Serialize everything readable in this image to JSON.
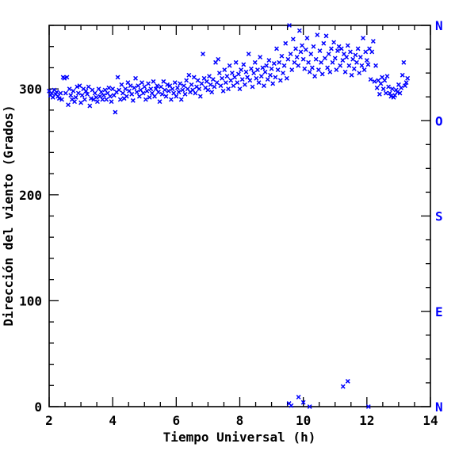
{
  "chart_data": {
    "type": "scatter",
    "xlabel": "Tiempo Universal (h)",
    "ylabel": "Dirección del viento (Grados)",
    "xlim": [
      2,
      14
    ],
    "ylim": [
      0,
      360
    ],
    "x_ticks": [
      "2",
      "4",
      "6",
      "8",
      "10",
      "12",
      "14"
    ],
    "y_ticks": [
      "0",
      "100",
      "200",
      "300"
    ],
    "right_axis_labels": [
      "N",
      "E",
      "S",
      "O",
      "N"
    ],
    "right_axis_values": [
      0,
      90,
      180,
      270,
      360
    ],
    "marker": "x",
    "grid": false,
    "colors": {
      "points": "#0000ff",
      "right_axis": "#0000ff",
      "axes": "#000000"
    },
    "series": [
      {
        "values": [
          [
            2.0,
            298
          ],
          [
            2.04,
            294
          ],
          [
            2.08,
            296
          ],
          [
            2.12,
            292
          ],
          [
            2.16,
            299
          ],
          [
            2.2,
            295
          ],
          [
            2.24,
            297
          ],
          [
            2.28,
            293
          ],
          [
            2.32,
            291
          ],
          [
            2.36,
            296
          ],
          [
            2.4,
            290
          ],
          [
            2.44,
            311
          ],
          [
            2.48,
            310
          ],
          [
            2.52,
            296
          ],
          [
            2.56,
            311
          ],
          [
            2.6,
            285
          ],
          [
            2.64,
            300
          ],
          [
            2.68,
            294
          ],
          [
            2.72,
            290
          ],
          [
            2.76,
            298
          ],
          [
            2.8,
            288
          ],
          [
            2.84,
            292
          ],
          [
            2.88,
            302
          ],
          [
            2.92,
            296
          ],
          [
            2.96,
            303
          ],
          [
            3.0,
            287
          ],
          [
            3.04,
            294
          ],
          [
            3.08,
            300
          ],
          [
            3.12,
            290
          ],
          [
            3.16,
            298
          ],
          [
            3.2,
            295
          ],
          [
            3.24,
            302
          ],
          [
            3.28,
            284
          ],
          [
            3.32,
            291
          ],
          [
            3.36,
            299
          ],
          [
            3.4,
            290
          ],
          [
            3.44,
            296
          ],
          [
            3.48,
            292
          ],
          [
            3.52,
            288
          ],
          [
            3.56,
            300
          ],
          [
            3.6,
            293
          ],
          [
            3.64,
            297
          ],
          [
            3.68,
            290
          ],
          [
            3.72,
            294
          ],
          [
            3.76,
            299
          ],
          [
            3.8,
            290
          ],
          [
            3.84,
            296
          ],
          [
            3.88,
            301
          ],
          [
            3.92,
            293
          ],
          [
            3.96,
            288
          ],
          [
            4.0,
            300
          ],
          [
            4.04,
            294
          ],
          [
            4.08,
            278
          ],
          [
            4.12,
            297
          ],
          [
            4.16,
            311
          ],
          [
            4.2,
            299
          ],
          [
            4.24,
            290
          ],
          [
            4.28,
            304
          ],
          [
            4.32,
            296
          ],
          [
            4.36,
            291
          ],
          [
            4.4,
            300
          ],
          [
            4.44,
            293
          ],
          [
            4.48,
            306
          ],
          [
            4.52,
            298
          ],
          [
            4.56,
            303
          ],
          [
            4.6,
            295
          ],
          [
            4.64,
            289
          ],
          [
            4.68,
            301
          ],
          [
            4.72,
            310
          ],
          [
            4.76,
            297
          ],
          [
            4.8,
            303
          ],
          [
            4.84,
            293
          ],
          [
            4.88,
            299
          ],
          [
            4.92,
            306
          ],
          [
            4.96,
            296
          ],
          [
            5.0,
            302
          ],
          [
            5.04,
            290
          ],
          [
            5.08,
            298
          ],
          [
            5.12,
            305
          ],
          [
            5.16,
            292
          ],
          [
            5.2,
            300
          ],
          [
            5.24,
            296
          ],
          [
            5.28,
            307
          ],
          [
            5.32,
            293
          ],
          [
            5.36,
            300
          ],
          [
            5.4,
            303
          ],
          [
            5.44,
            297
          ],
          [
            5.48,
            288
          ],
          [
            5.52,
            302
          ],
          [
            5.56,
            295
          ],
          [
            5.6,
            307
          ],
          [
            5.64,
            299
          ],
          [
            5.68,
            293
          ],
          [
            5.72,
            304
          ],
          [
            5.76,
            298
          ],
          [
            5.8,
            303
          ],
          [
            5.84,
            290
          ],
          [
            5.88,
            300
          ],
          [
            5.92,
            296
          ],
          [
            5.96,
            306
          ],
          [
            6.0,
            293
          ],
          [
            6.04,
            301
          ],
          [
            6.08,
            297
          ],
          [
            6.12,
            305
          ],
          [
            6.16,
            290
          ],
          [
            6.2,
            299
          ],
          [
            6.24,
            303
          ],
          [
            6.28,
            295
          ],
          [
            6.32,
            308
          ],
          [
            6.36,
            300
          ],
          [
            6.4,
            313
          ],
          [
            6.44,
            297
          ],
          [
            6.48,
            304
          ],
          [
            6.52,
            299
          ],
          [
            6.56,
            311
          ],
          [
            6.6,
            296
          ],
          [
            6.64,
            302
          ],
          [
            6.68,
            308
          ],
          [
            6.72,
            300
          ],
          [
            6.76,
            293
          ],
          [
            6.8,
            305
          ],
          [
            6.84,
            333
          ],
          [
            6.88,
            310
          ],
          [
            6.92,
            301
          ],
          [
            6.96,
            307
          ],
          [
            7.0,
            299
          ],
          [
            7.04,
            312
          ],
          [
            7.08,
            304
          ],
          [
            7.12,
            297
          ],
          [
            7.16,
            309
          ],
          [
            7.2,
            302
          ],
          [
            7.24,
            325
          ],
          [
            7.28,
            306
          ],
          [
            7.32,
            328
          ],
          [
            7.36,
            315
          ],
          [
            7.4,
            303
          ],
          [
            7.44,
            310
          ],
          [
            7.48,
            298
          ],
          [
            7.52,
            318
          ],
          [
            7.56,
            306
          ],
          [
            7.6,
            312
          ],
          [
            7.64,
            300
          ],
          [
            7.68,
            322
          ],
          [
            7.72,
            308
          ],
          [
            7.76,
            315
          ],
          [
            7.8,
            303
          ],
          [
            7.84,
            311
          ],
          [
            7.88,
            325
          ],
          [
            7.92,
            306
          ],
          [
            7.96,
            314
          ],
          [
            8.0,
            300
          ],
          [
            8.04,
            318
          ],
          [
            8.08,
            309
          ],
          [
            8.12,
            323
          ],
          [
            8.16,
            304
          ],
          [
            8.2,
            316
          ],
          [
            8.24,
            311
          ],
          [
            8.28,
            333
          ],
          [
            8.32,
            308
          ],
          [
            8.36,
            319
          ],
          [
            8.4,
            302
          ],
          [
            8.44,
            315
          ],
          [
            8.48,
            325
          ],
          [
            8.52,
            310
          ],
          [
            8.56,
            318
          ],
          [
            8.6,
            306
          ],
          [
            8.64,
            330
          ],
          [
            8.68,
            312
          ],
          [
            8.72,
            320
          ],
          [
            8.76,
            303
          ],
          [
            8.8,
            316
          ],
          [
            8.84,
            322
          ],
          [
            8.88,
            309
          ],
          [
            8.92,
            327
          ],
          [
            8.96,
            313
          ],
          [
            9.0,
            319
          ],
          [
            9.04,
            305
          ],
          [
            9.08,
            324
          ],
          [
            9.12,
            311
          ],
          [
            9.16,
            338
          ],
          [
            9.2,
            318
          ],
          [
            9.24,
            325
          ],
          [
            9.28,
            308
          ],
          [
            9.32,
            331
          ],
          [
            9.36,
            315
          ],
          [
            9.4,
            322
          ],
          [
            9.44,
            343
          ],
          [
            9.48,
            310
          ],
          [
            9.52,
            328
          ],
          [
            9.56,
            360
          ],
          [
            9.6,
            333
          ],
          [
            9.64,
            318
          ],
          [
            9.68,
            347
          ],
          [
            9.72,
            325
          ],
          [
            9.76,
            338
          ],
          [
            9.8,
            330
          ],
          [
            9.84,
            322
          ],
          [
            9.88,
            355
          ],
          [
            9.92,
            335
          ],
          [
            9.96,
            341
          ],
          [
            10.0,
            328
          ],
          [
            10.04,
            319
          ],
          [
            10.08,
            337
          ],
          [
            10.12,
            348
          ],
          [
            10.16,
            325
          ],
          [
            10.2,
            316
          ],
          [
            10.24,
            333
          ],
          [
            10.28,
            320
          ],
          [
            10.32,
            340
          ],
          [
            10.36,
            312
          ],
          [
            10.4,
            328
          ],
          [
            10.44,
            351
          ],
          [
            10.48,
            318
          ],
          [
            10.52,
            336
          ],
          [
            10.56,
            325
          ],
          [
            10.6,
            314
          ],
          [
            10.64,
            343
          ],
          [
            10.68,
            329
          ],
          [
            10.72,
            350
          ],
          [
            10.76,
            320
          ],
          [
            10.8,
            333
          ],
          [
            10.84,
            316
          ],
          [
            10.88,
            338
          ],
          [
            10.92,
            325
          ],
          [
            10.96,
            344
          ],
          [
            11.0,
            329
          ],
          [
            11.04,
            318
          ],
          [
            11.08,
            336
          ],
          [
            11.12,
            340
          ],
          [
            11.16,
            322
          ],
          [
            11.2,
            338
          ],
          [
            11.24,
            327
          ],
          [
            11.28,
            333
          ],
          [
            11.32,
            316
          ],
          [
            11.36,
            330
          ],
          [
            11.4,
            341
          ],
          [
            11.44,
            322
          ],
          [
            11.48,
            335
          ],
          [
            11.52,
            313
          ],
          [
            11.56,
            328
          ],
          [
            11.6,
            319
          ],
          [
            11.64,
            332
          ],
          [
            11.68,
            325
          ],
          [
            11.72,
            338
          ],
          [
            11.76,
            315
          ],
          [
            11.8,
            330
          ],
          [
            11.84,
            322
          ],
          [
            11.88,
            348
          ],
          [
            11.92,
            318
          ],
          [
            11.96,
            335
          ],
          [
            12.0,
            327
          ],
          [
            12.04,
            323
          ],
          [
            12.08,
            338
          ],
          [
            12.12,
            309
          ],
          [
            12.16,
            335
          ],
          [
            12.2,
            345
          ],
          [
            12.24,
            307
          ],
          [
            12.28,
            322
          ],
          [
            12.32,
            301
          ],
          [
            12.36,
            308
          ],
          [
            12.4,
            295
          ],
          [
            12.44,
            305
          ],
          [
            12.48,
            311
          ],
          [
            12.52,
            300
          ],
          [
            12.56,
            308
          ],
          [
            12.6,
            296
          ],
          [
            12.64,
            312
          ],
          [
            12.68,
            302
          ],
          [
            12.72,
            296
          ],
          [
            12.76,
            293
          ],
          [
            12.8,
            300
          ],
          [
            12.84,
            292
          ],
          [
            12.88,
            294
          ],
          [
            12.92,
            299
          ],
          [
            12.96,
            297
          ],
          [
            13.0,
            304
          ],
          [
            13.04,
            296
          ],
          [
            13.08,
            301
          ],
          [
            13.12,
            313
          ],
          [
            13.16,
            325
          ],
          [
            13.2,
            303
          ],
          [
            13.24,
            306
          ],
          [
            13.28,
            310
          ],
          [
            9.55,
            3
          ],
          [
            9.62,
            1
          ],
          [
            9.85,
            9
          ],
          [
            10.0,
            4
          ],
          [
            10.2,
            0
          ],
          [
            11.25,
            19
          ],
          [
            11.4,
            24
          ],
          [
            12.05,
            0
          ]
        ]
      }
    ]
  }
}
